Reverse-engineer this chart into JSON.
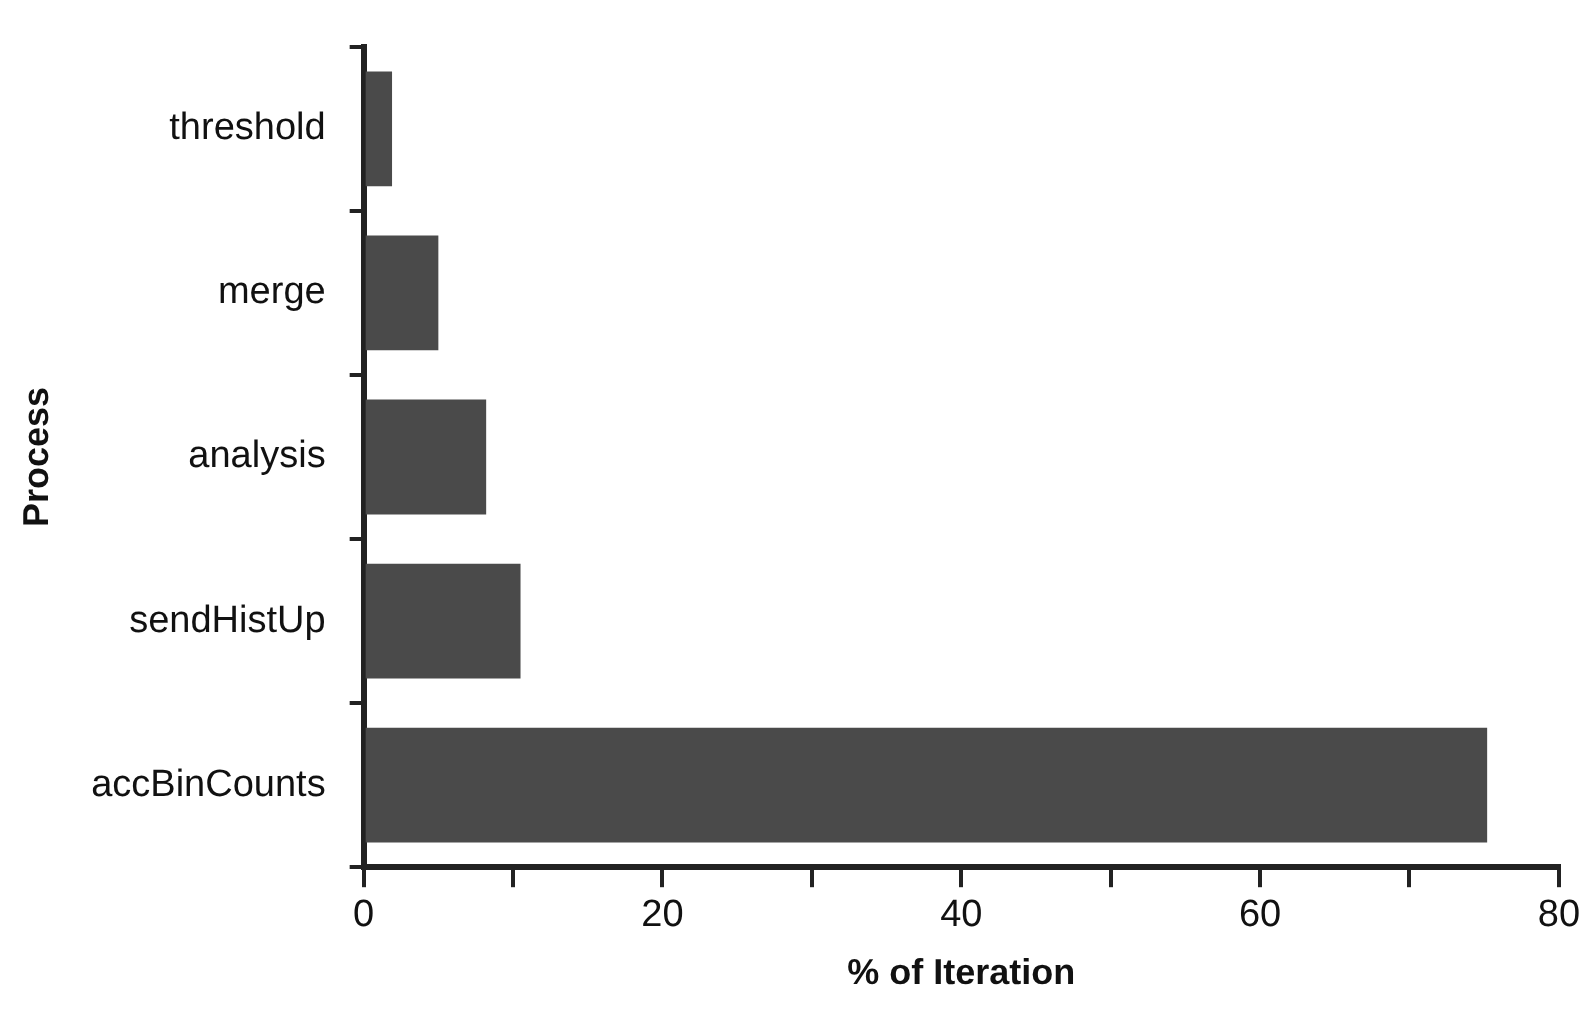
{
  "chart_data": {
    "type": "bar",
    "orientation": "horizontal",
    "xlabel": "% of Iteration",
    "ylabel": "Process",
    "categories": [
      "threshold",
      "merge",
      "analysis",
      "sendHistUp",
      "accBinCounts"
    ],
    "values": [
      1.9,
      5.0,
      8.2,
      10.5,
      75.2
    ],
    "color": "#4a4a4a",
    "xlim": [
      0,
      80
    ],
    "xticks": [
      0,
      {
        "value": 10,
        "label": null
      },
      20,
      {
        "value": 30,
        "label": null
      },
      40,
      {
        "value": 50,
        "label": null
      },
      60,
      {
        "value": 70,
        "label": null
      },
      80
    ],
    "grid": false,
    "legend": false
  }
}
